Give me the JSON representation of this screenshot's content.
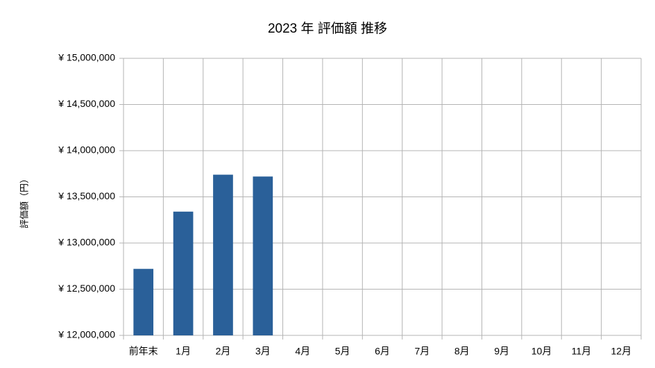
{
  "chart_data": {
    "type": "bar",
    "title": "2023 年 評価額 推移",
    "y_label": "評価額（円）",
    "categories": [
      "前年末",
      "1月",
      "2月",
      "3月",
      "4月",
      "5月",
      "6月",
      "7月",
      "8月",
      "9月",
      "10月",
      "11月",
      "12月"
    ],
    "values": [
      12720000,
      13340000,
      13740000,
      13720000,
      null,
      null,
      null,
      null,
      null,
      null,
      null,
      null,
      null
    ],
    "color": "#2a6099",
    "ylim": [
      12000000,
      15000000
    ],
    "yticks": [
      {
        "value": 12000000,
        "label": "¥ 12,000,000"
      },
      {
        "value": 12500000,
        "label": "¥ 12,500,000"
      },
      {
        "value": 13000000,
        "label": "¥ 13,000,000"
      },
      {
        "value": 13500000,
        "label": "¥ 13,500,000"
      },
      {
        "value": 14000000,
        "label": "¥ 14,000,000"
      },
      {
        "value": 14500000,
        "label": "¥ 14,500,000"
      },
      {
        "value": 15000000,
        "label": "¥ 15,000,000"
      }
    ],
    "grid": true
  }
}
